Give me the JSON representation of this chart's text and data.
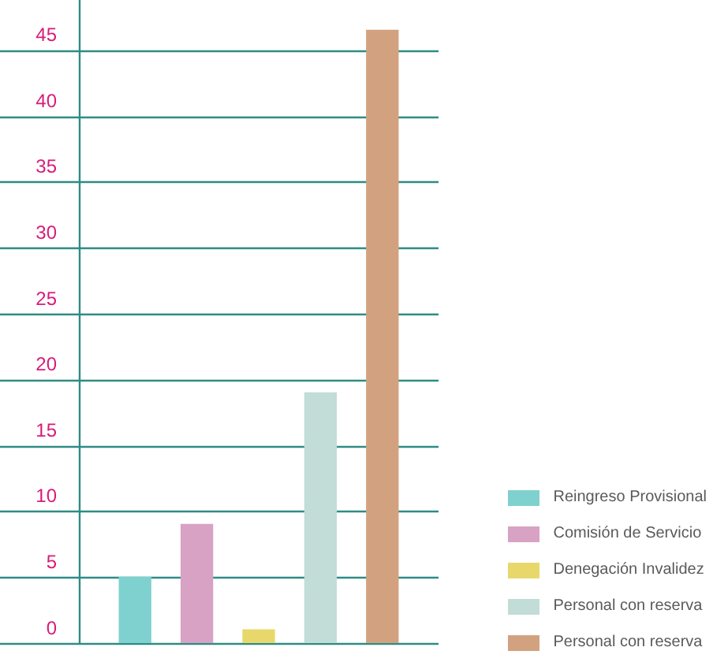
{
  "chart_data": {
    "type": "bar",
    "categories": [
      null,
      null,
      null,
      null,
      null
    ],
    "stacked": true,
    "series": [
      {
        "name": "Reingreso Provisional",
        "color": "#7fd1cf",
        "values": [
          5,
          null,
          null,
          null,
          null
        ]
      },
      {
        "name": "Comisión de Servicio",
        "color": "#d8a2c4",
        "values": [
          null,
          9,
          null,
          null,
          null
        ]
      },
      {
        "name": "Denegación Invalidez",
        "color": "#e8d86c",
        "values": [
          null,
          null,
          1,
          null,
          null
        ]
      },
      {
        "name": "Personal con reserva",
        "color": "#c2dcd7",
        "values": [
          null,
          null,
          null,
          19,
          null
        ]
      },
      {
        "name": "Personal con reserva",
        "color": "#d2a280",
        "values": [
          null,
          null,
          null,
          null,
          46.5
        ]
      }
    ],
    "ylim": [
      0,
      48.8
    ],
    "yticks": [
      0,
      5,
      10,
      15,
      20,
      25,
      30,
      35,
      40,
      45
    ],
    "grid": "y",
    "legend": "bottom right",
    "tick_labels": "y"
  }
}
